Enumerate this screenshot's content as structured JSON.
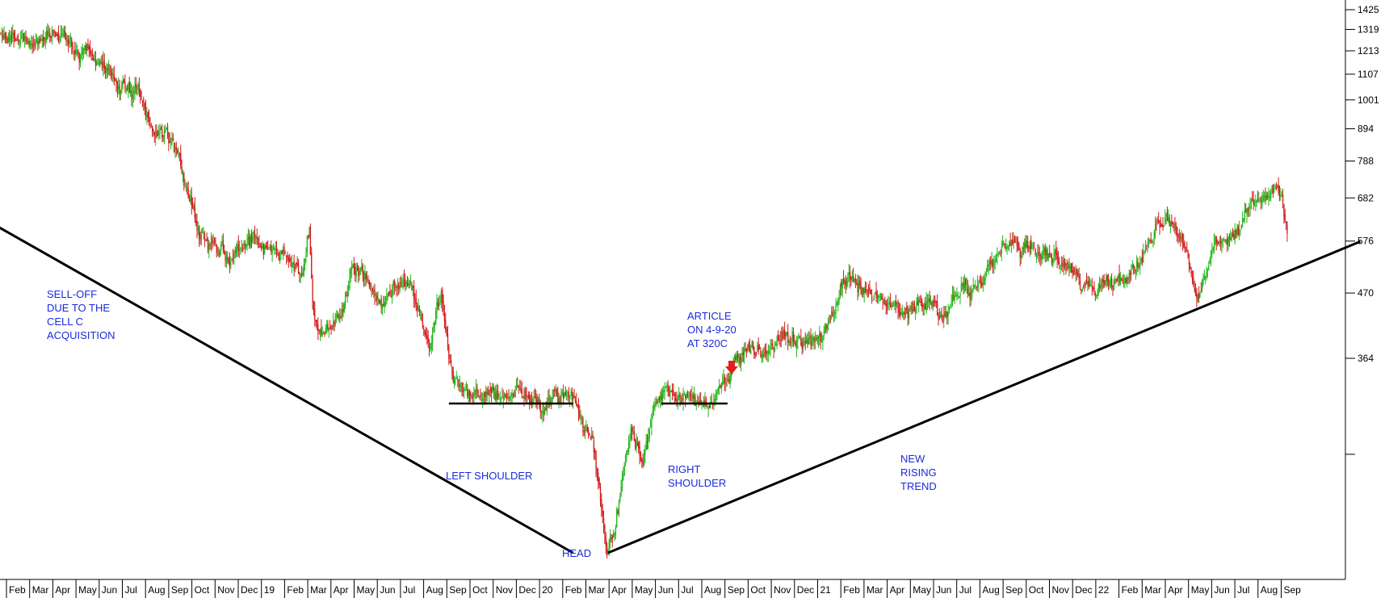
{
  "chart_data": {
    "type": "candlestick",
    "y_scale": "log",
    "ylim": [
      150,
      1450
    ],
    "y_ticks": [
      1425,
      1319,
      1213,
      1107,
      1001,
      894,
      788,
      682,
      576,
      470,
      364,
      250
    ],
    "y_tick_labels": [
      "1425",
      "1319",
      "1213",
      "1107",
      "1001",
      "894",
      "788",
      "682",
      "576",
      "470",
      "364",
      ""
    ],
    "x_tick_labels": [
      "Feb",
      "Mar",
      "Apr",
      "May",
      "Jun",
      "Jul",
      "Aug",
      "Sep",
      "Oct",
      "Nov",
      "Dec",
      "19",
      "Feb",
      "Mar",
      "Apr",
      "May",
      "Jun",
      "Jul",
      "Aug",
      "Sep",
      "Oct",
      "Nov",
      "Dec",
      "20",
      "Feb",
      "Mar",
      "Apr",
      "May",
      "Jun",
      "Jul",
      "Aug",
      "Sep",
      "Oct",
      "Nov",
      "Dec",
      "21",
      "Feb",
      "Mar",
      "Apr",
      "May",
      "Jun",
      "Jul",
      "Aug",
      "Sep",
      "Oct",
      "Nov",
      "Dec",
      "22",
      "Feb",
      "Mar",
      "Apr",
      "May",
      "Jun",
      "Jul",
      "Aug",
      "Sep"
    ],
    "up_color": "#22b61b",
    "down_color": "#d11a1a",
    "path": [
      [
        "2018-01-01",
        1380
      ],
      [
        "2018-01-25",
        1290
      ],
      [
        "2018-03-10",
        1280
      ],
      [
        "2018-04-05",
        1310
      ],
      [
        "2018-05-01",
        1240
      ],
      [
        "2018-06-10",
        1140
      ],
      [
        "2018-07-20",
        1030
      ],
      [
        "2018-08-10",
        880
      ],
      [
        "2018-08-30",
        930
      ],
      [
        "2018-09-18",
        760
      ],
      [
        "2018-10-05",
        610
      ],
      [
        "2018-10-25",
        560
      ],
      [
        "2018-11-20",
        545
      ],
      [
        "2018-12-15",
        575
      ],
      [
        "2019-01-20",
        555
      ],
      [
        "2019-02-10",
        520
      ],
      [
        "2019-02-25",
        500
      ],
      [
        "2019-03-05",
        600
      ],
      [
        "2019-03-10",
        440
      ],
      [
        "2019-03-25",
        405
      ],
      [
        "2019-04-15",
        420
      ],
      [
        "2019-05-01",
        510
      ],
      [
        "2019-05-25",
        490
      ],
      [
        "2019-06-10",
        430
      ],
      [
        "2019-06-25",
        500
      ],
      [
        "2019-07-15",
        490
      ],
      [
        "2019-07-30",
        420
      ],
      [
        "2019-08-10",
        390
      ],
      [
        "2019-08-25",
        470
      ],
      [
        "2019-09-10",
        330
      ],
      [
        "2019-09-30",
        310
      ],
      [
        "2019-10-25",
        310
      ],
      [
        "2019-11-15",
        305
      ],
      [
        "2019-12-10",
        325
      ],
      [
        "2020-01-05",
        295
      ],
      [
        "2020-01-20",
        320
      ],
      [
        "2020-02-10",
        315
      ],
      [
        "2020-02-25",
        275
      ],
      [
        "2020-03-10",
        275
      ],
      [
        "2020-03-20",
        220
      ],
      [
        "2020-03-30",
        165
      ],
      [
        "2020-04-10",
        190
      ],
      [
        "2020-04-30",
        280
      ],
      [
        "2020-05-15",
        250
      ],
      [
        "2020-06-01",
        295
      ],
      [
        "2020-06-15",
        330
      ],
      [
        "2020-07-10",
        310
      ],
      [
        "2020-08-10",
        300
      ],
      [
        "2020-08-25",
        315
      ],
      [
        "2020-09-10",
        345
      ],
      [
        "2020-10-01",
        380
      ],
      [
        "2020-10-25",
        375
      ],
      [
        "2020-11-20",
        395
      ],
      [
        "2020-12-20",
        385
      ],
      [
        "2021-01-10",
        400
      ],
      [
        "2021-01-25",
        460
      ],
      [
        "2021-02-10",
        505
      ],
      [
        "2021-03-05",
        480
      ],
      [
        "2021-03-25",
        445
      ],
      [
        "2021-04-20",
        435
      ],
      [
        "2021-05-25",
        455
      ],
      [
        "2021-06-20",
        430
      ],
      [
        "2021-07-10",
        490
      ],
      [
        "2021-07-30",
        480
      ],
      [
        "2021-08-20",
        520
      ],
      [
        "2021-09-05",
        580
      ],
      [
        "2021-09-25",
        545
      ],
      [
        "2021-10-25",
        555
      ],
      [
        "2021-11-20",
        535
      ],
      [
        "2021-12-20",
        480
      ],
      [
        "2022-01-25",
        505
      ],
      [
        "2022-02-15",
        500
      ],
      [
        "2022-03-05",
        540
      ],
      [
        "2022-03-20",
        600
      ],
      [
        "2022-04-05",
        610
      ],
      [
        "2022-04-25",
        590
      ],
      [
        "2022-05-10",
        480
      ],
      [
        "2022-05-25",
        490
      ],
      [
        "2022-06-05",
        560
      ],
      [
        "2022-06-25",
        570
      ],
      [
        "2022-07-15",
        650
      ],
      [
        "2022-08-15",
        680
      ],
      [
        "2022-09-01",
        700
      ],
      [
        "2022-09-10",
        610
      ]
    ],
    "trend_lines": [
      [
        [
          "2017-12-20",
          643
        ],
        [
          "2020-02-15",
          170
        ]
      ],
      [
        [
          "2020-04-01",
          170
        ],
        [
          "2022-12-15",
          575
        ]
      ]
    ],
    "support_lines": [
      [
        [
          "2019-09-05",
          305
        ],
        [
          "2020-02-15",
          305
        ]
      ],
      [
        [
          "2020-06-10",
          305
        ],
        [
          "2020-09-05",
          305
        ]
      ]
    ],
    "annotations": [
      "SELL-OFF\nDUE TO THE\nCELL C\nACQUISITION",
      "LEFT SHOULDER",
      "HEAD",
      "RIGHT\nSHOULDER",
      "ARTICLE\nON 4-9-20\nAT 320C",
      "NEW\nRISING\nTREND"
    ]
  }
}
